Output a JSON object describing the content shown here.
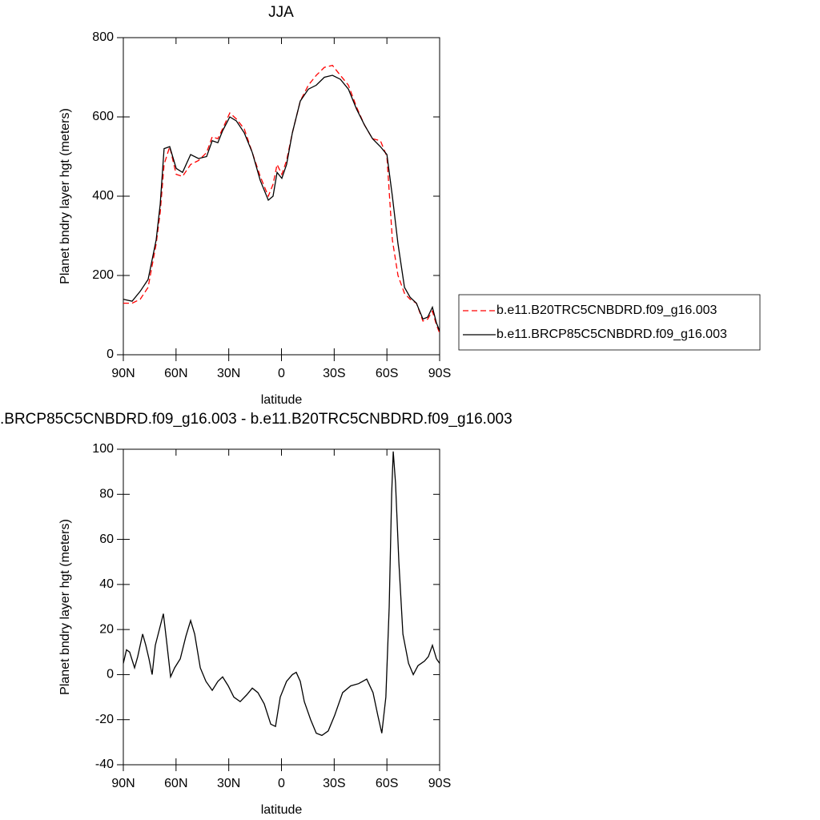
{
  "chart_data": [
    {
      "type": "line",
      "title": "JJA",
      "xlabel": "latitude",
      "ylabel": "Planet bndry layer hgt (meters)",
      "xlim": [
        90,
        -90
      ],
      "xticks": [
        {
          "value": 90,
          "label": "90N"
        },
        {
          "value": 60,
          "label": "60N"
        },
        {
          "value": 30,
          "label": "30N"
        },
        0,
        {
          "value": -30,
          "label": "30S"
        },
        {
          "value": -60,
          "label": "60S"
        },
        {
          "value": -90,
          "label": "90S"
        }
      ],
      "ylim": [
        0,
        800
      ],
      "yticks": [
        0,
        200,
        400,
        600,
        800
      ],
      "x": [
        90,
        85,
        80.4,
        75.9,
        71.3,
        69,
        66.8,
        63.6,
        59.9,
        56.3,
        51.7,
        47.2,
        42.6,
        39.4,
        36.2,
        33.5,
        29.4,
        25.7,
        21.2,
        16.6,
        12.1,
        7.5,
        4.8,
        2.5,
        -0.2,
        -2.9,
        -6.2,
        -10.7,
        -15.3,
        -19.8,
        -24.4,
        -29,
        -33.5,
        -38.1,
        -42.7,
        -47.2,
        -51.8,
        -56.3,
        -60,
        -63.1,
        -66.3,
        -70,
        -73.2,
        -76.8,
        -80.5,
        -83.2,
        -85.9,
        -88.2,
        -90
      ],
      "series": [
        {
          "name": "b.e11.B20TRC5CNBDRD.f09_g16.003",
          "color": "#ff0000",
          "style": "dashed",
          "values": [
            130,
            130,
            140,
            170,
            280,
            360,
            480,
            525,
            455,
            450,
            480,
            490,
            510,
            550,
            545,
            570,
            610,
            595,
            570,
            510,
            450,
            400,
            430,
            480,
            455,
            490,
            560,
            640,
            680,
            705,
            725,
            730,
            705,
            680,
            625,
            580,
            545,
            540,
            500,
            290,
            200,
            155,
            140,
            130,
            85,
            90,
            110,
            75,
            55
          ]
        },
        {
          "name": "b.e11.BRCP85C5CNBDRD.f09_g16.003",
          "color": "#000000",
          "style": "solid",
          "values": [
            140,
            135,
            160,
            190,
            290,
            380,
            520,
            525,
            470,
            460,
            505,
            495,
            500,
            540,
            535,
            565,
            600,
            590,
            560,
            510,
            440,
            390,
            400,
            460,
            445,
            480,
            560,
            640,
            670,
            680,
            700,
            705,
            695,
            670,
            620,
            580,
            545,
            525,
            505,
            400,
            280,
            170,
            145,
            130,
            90,
            95,
            120,
            80,
            60
          ]
        }
      ]
    },
    {
      "type": "line",
      "title": ".BRCP85C5CNBDRD.f09_g16.003 - b.e11.B20TRC5CNBDRD.f09_g16.003",
      "xlabel": "latitude",
      "ylabel": "Planet bndry layer hgt (meters)",
      "xlim": [
        90,
        -90
      ],
      "xticks": [
        {
          "value": 90,
          "label": "90N"
        },
        {
          "value": 60,
          "label": "60N"
        },
        {
          "value": 30,
          "label": "30N"
        },
        0,
        {
          "value": -30,
          "label": "30S"
        },
        {
          "value": -60,
          "label": "60S"
        },
        {
          "value": -90,
          "label": "90S"
        }
      ],
      "ylim": [
        -40,
        100
      ],
      "yticks": [
        -40,
        -20,
        0,
        20,
        40,
        60,
        80,
        100
      ],
      "x": [
        90,
        88.2,
        86.4,
        83.6,
        81.8,
        79,
        77.2,
        75.4,
        73.6,
        71.8,
        69.5,
        67.2,
        65.4,
        63.1,
        60.8,
        57.6,
        54.4,
        51.7,
        49.4,
        46.2,
        43,
        39.4,
        36.2,
        33.5,
        30.3,
        27.1,
        23.5,
        19.8,
        16.6,
        13.4,
        9.8,
        6.1,
        3.4,
        0.7,
        -2.9,
        -6.2,
        -8.4,
        -10.7,
        -13,
        -16.6,
        -19.8,
        -23,
        -26.6,
        -30.3,
        -34.8,
        -39.4,
        -43.9,
        -48.5,
        -52.1,
        -54.8,
        -57.1,
        -59.4,
        -61.3,
        -62.7,
        -63.6,
        -64.9,
        -66.8,
        -69.1,
        -72.3,
        -75,
        -77.7,
        -81.4,
        -83.6,
        -85.9,
        -88.2,
        -90
      ],
      "series": [
        {
          "color": "#000000",
          "style": "solid",
          "values": [
            5,
            11,
            10,
            3,
            8,
            18,
            13,
            7,
            0,
            13,
            20,
            27,
            15,
            -1,
            3,
            7,
            17,
            24,
            18,
            3,
            -3,
            -7,
            -3,
            -1,
            -5,
            -10,
            -12,
            -9,
            -6,
            -8,
            -13,
            -22,
            -23,
            -10,
            -3,
            0,
            1,
            -3,
            -12,
            -20,
            -26,
            -27,
            -25,
            -18,
            -8,
            -5,
            -4,
            -2,
            -8,
            -18,
            -26,
            -10,
            30,
            80,
            99,
            85,
            50,
            18,
            5,
            0,
            4,
            6,
            8,
            13,
            7,
            5
          ]
        }
      ]
    }
  ]
}
